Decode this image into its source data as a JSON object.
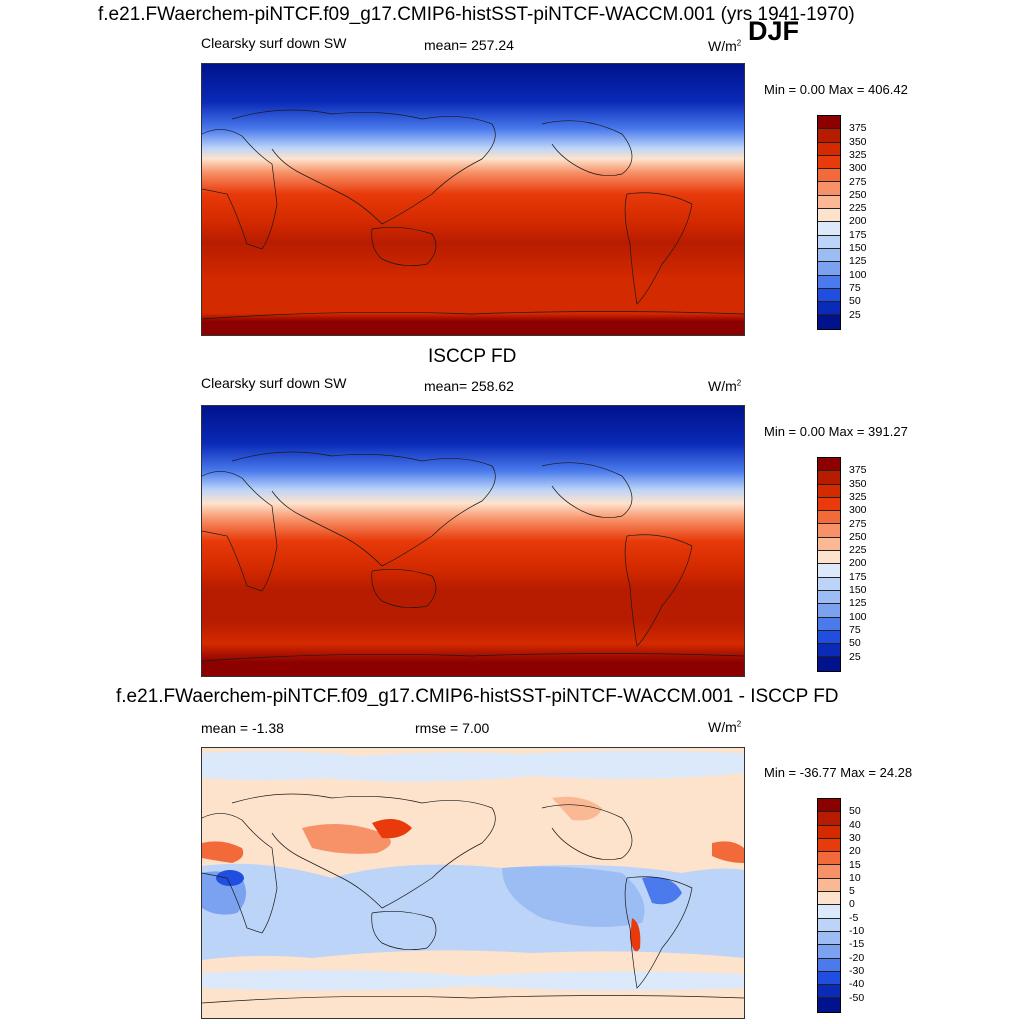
{
  "header": {
    "title": "f.e21.FWaerchem-piNTCF.f09_g17.CMIP6-histSST-piNTCF-WACCM.001 (yrs 1941-1970)",
    "season": "DJF"
  },
  "panel1": {
    "variable": "Clearsky surf down SW",
    "mean_text": "mean= 257.24",
    "units_base": "W/m",
    "units_exp": "2",
    "minmax_text": "Min =   0.00 Max = 406.42"
  },
  "panel2": {
    "title": "ISCCP FD",
    "variable": "Clearsky surf down SW",
    "mean_text": "mean= 258.62",
    "units_base": "W/m",
    "units_exp": "2",
    "minmax_text": "Min =   0.00 Max = 391.27"
  },
  "panel3": {
    "title": "f.e21.FWaerchem-piNTCF.f09_g17.CMIP6-histSST-piNTCF-WACCM.001 - ISCCP FD",
    "mean_text": "mean =  -1.38",
    "rmse_text": "rmse =   7.00",
    "units_base": "W/m",
    "units_exp": "2",
    "minmax_text": "Min = -36.77 Max =  24.28"
  },
  "colorbar_abs": {
    "labels": [
      "375",
      "350",
      "325",
      "300",
      "275",
      "250",
      "225",
      "200",
      "175",
      "150",
      "125",
      "100",
      "75",
      "50",
      "25"
    ],
    "colors": [
      "#8c0000",
      "#b81c00",
      "#d42a00",
      "#e83a0a",
      "#f26a3a",
      "#f79268",
      "#fbb894",
      "#fde3cc",
      "#dbe9fb",
      "#bcd4f8",
      "#9cbcf4",
      "#7aa2f0",
      "#4a7aec",
      "#1f4ee0",
      "#0a2ab8",
      "#00128c"
    ]
  },
  "colorbar_diff": {
    "labels": [
      "50",
      "40",
      "30",
      "20",
      "15",
      "10",
      "5",
      "0",
      "-5",
      "-10",
      "-15",
      "-20",
      "-30",
      "-40",
      "-50"
    ],
    "colors": [
      "#8c0000",
      "#b81c00",
      "#d42a00",
      "#e83a0a",
      "#f26a3a",
      "#f79268",
      "#fbb894",
      "#fde3cc",
      "#dbe9fb",
      "#bcd4f8",
      "#9cbcf4",
      "#7aa2f0",
      "#4a7aec",
      "#1f4ee0",
      "#0a2ab8",
      "#00128c"
    ]
  },
  "chart_data": [
    {
      "type": "heatmap",
      "title": "f.e21.FWaerchem-piNTCF.f09_g17.CMIP6-histSST-piNTCF-WACCM.001 (yrs 1941-1970)",
      "variable": "Clearsky surf down SW",
      "mean": 257.24,
      "min": 0.0,
      "max": 406.42,
      "units": "W/m2",
      "season": "DJF",
      "contour_levels": [
        25,
        50,
        75,
        100,
        125,
        150,
        175,
        200,
        225,
        250,
        275,
        300,
        325,
        350,
        375
      ],
      "zonal_profile": [
        {
          "lat": 90,
          "value": 0
        },
        {
          "lat": 60,
          "value": 25
        },
        {
          "lat": 45,
          "value": 120
        },
        {
          "lat": 30,
          "value": 220
        },
        {
          "lat": 15,
          "value": 300
        },
        {
          "lat": 0,
          "value": 330
        },
        {
          "lat": -15,
          "value": 355
        },
        {
          "lat": -30,
          "value": 365
        },
        {
          "lat": -45,
          "value": 350
        },
        {
          "lat": -60,
          "value": 345
        },
        {
          "lat": -75,
          "value": 380
        },
        {
          "lat": -90,
          "value": 400
        }
      ]
    },
    {
      "type": "heatmap",
      "title": "ISCCP FD",
      "variable": "Clearsky surf down SW",
      "mean": 258.62,
      "min": 0.0,
      "max": 391.27,
      "units": "W/m2",
      "contour_levels": [
        25,
        50,
        75,
        100,
        125,
        150,
        175,
        200,
        225,
        250,
        275,
        300,
        325,
        350,
        375
      ],
      "zonal_profile": [
        {
          "lat": 90,
          "value": 0
        },
        {
          "lat": 60,
          "value": 25
        },
        {
          "lat": 45,
          "value": 120
        },
        {
          "lat": 30,
          "value": 225
        },
        {
          "lat": 15,
          "value": 300
        },
        {
          "lat": 0,
          "value": 330
        },
        {
          "lat": -15,
          "value": 355
        },
        {
          "lat": -30,
          "value": 365
        },
        {
          "lat": -45,
          "value": 350
        },
        {
          "lat": -60,
          "value": 345
        },
        {
          "lat": -75,
          "value": 375
        },
        {
          "lat": -90,
          "value": 390
        }
      ]
    },
    {
      "type": "heatmap",
      "title": "f.e21.FWaerchem-piNTCF.f09_g17.CMIP6-histSST-piNTCF-WACCM.001 - ISCCP FD",
      "mean": -1.38,
      "rmse": 7.0,
      "min": -36.77,
      "max": 24.28,
      "units": "W/m2",
      "contour_levels": [
        -50,
        -40,
        -30,
        -20,
        -15,
        -10,
        -5,
        0,
        5,
        10,
        15,
        20,
        30,
        40,
        50
      ],
      "zonal_profile": [
        {
          "lat": 75,
          "value": -2
        },
        {
          "lat": 45,
          "value": 2
        },
        {
          "lat": 30,
          "value": 8
        },
        {
          "lat": 15,
          "value": 6
        },
        {
          "lat": 0,
          "value": -3
        },
        {
          "lat": -15,
          "value": -8
        },
        {
          "lat": -30,
          "value": -5
        },
        {
          "lat": -45,
          "value": -4
        },
        {
          "lat": -60,
          "value": 1
        },
        {
          "lat": -75,
          "value": 2
        }
      ]
    }
  ]
}
